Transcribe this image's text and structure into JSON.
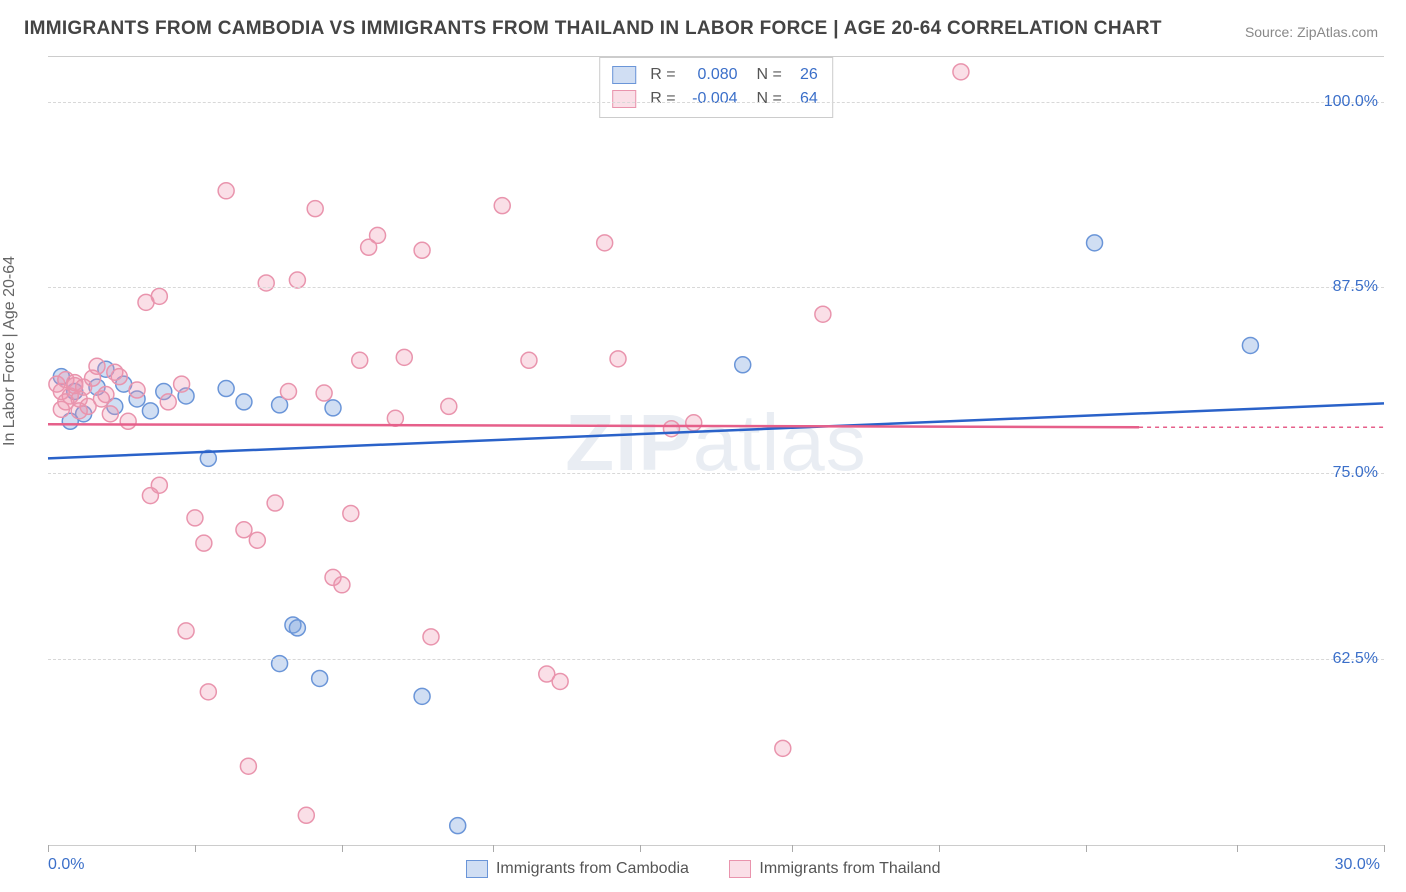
{
  "title": "IMMIGRANTS FROM CAMBODIA VS IMMIGRANTS FROM THAILAND IN LABOR FORCE | AGE 20-64 CORRELATION CHART",
  "source": "Source: ZipAtlas.com",
  "ylabel": "In Labor Force | Age 20-64",
  "watermark_a": "ZIP",
  "watermark_b": "atlas",
  "chart": {
    "type": "scatter-correlation",
    "background_color": "#ffffff",
    "grid_color": "#d8d8d8",
    "axis_color": "#cccccc",
    "marker_radius": 8,
    "marker_stroke_width": 1.5,
    "trend_line_width": 2.5,
    "trend_dash_width": 1.5,
    "xlim": [
      0,
      30
    ],
    "ylim": [
      50,
      103
    ],
    "xtick_positions": [
      0,
      3.3,
      6.6,
      10,
      13.3,
      16.7,
      20,
      23.3,
      26.7,
      30
    ],
    "xtick_labels": {
      "0": "0.0%",
      "30": "30.0%"
    },
    "ytick_positions": [
      62.5,
      75.0,
      87.5,
      100.0
    ],
    "ytick_labels": [
      "62.5%",
      "75.0%",
      "87.5%",
      "100.0%"
    ]
  },
  "series": [
    {
      "name": "Immigrants from Cambodia",
      "color_fill": "rgba(120,160,220,0.35)",
      "color_stroke": "#6a95d8",
      "line_color": "#2a62c9",
      "R": "0.080",
      "N": "26",
      "trend": {
        "x0": 0,
        "y0": 76.0,
        "x1": 30,
        "y1": 79.7,
        "dash_from_x": 30
      },
      "points": [
        [
          0.3,
          81.5
        ],
        [
          0.6,
          80.5
        ],
        [
          0.8,
          79.0
        ],
        [
          1.1,
          80.8
        ],
        [
          1.3,
          82.0
        ],
        [
          1.5,
          79.5
        ],
        [
          1.7,
          81.0
        ],
        [
          2.0,
          80.0
        ],
        [
          2.3,
          79.2
        ],
        [
          2.6,
          80.5
        ],
        [
          3.1,
          80.2
        ],
        [
          3.6,
          76.0
        ],
        [
          4.0,
          80.7
        ],
        [
          4.4,
          79.8
        ],
        [
          5.2,
          79.6
        ],
        [
          5.5,
          64.8
        ],
        [
          5.6,
          64.6
        ],
        [
          5.2,
          62.2
        ],
        [
          6.1,
          61.2
        ],
        [
          6.4,
          79.4
        ],
        [
          8.4,
          60.0
        ],
        [
          9.2,
          51.3
        ],
        [
          15.6,
          82.3
        ],
        [
          23.5,
          90.5
        ],
        [
          27.0,
          83.6
        ],
        [
          0.5,
          78.5
        ]
      ]
    },
    {
      "name": "Immigrants from Thailand",
      "color_fill": "rgba(240,150,175,0.30)",
      "color_stroke": "#e994ad",
      "line_color": "#e65f8a",
      "R": "-0.004",
      "N": "64",
      "trend": {
        "x0": 0,
        "y0": 78.3,
        "x1": 24.5,
        "y1": 78.1,
        "dash_from_x": 24.5,
        "dash_to_x": 30
      },
      "points": [
        [
          0.2,
          81.0
        ],
        [
          0.3,
          80.5
        ],
        [
          0.4,
          81.3
        ],
        [
          0.5,
          80.2
        ],
        [
          0.6,
          81.1
        ],
        [
          0.7,
          80.0
        ],
        [
          0.8,
          80.8
        ],
        [
          0.9,
          79.5
        ],
        [
          1.0,
          81.4
        ],
        [
          1.1,
          82.2
        ],
        [
          1.3,
          80.3
        ],
        [
          1.4,
          79.0
        ],
        [
          1.6,
          81.5
        ],
        [
          1.8,
          78.5
        ],
        [
          2.0,
          80.6
        ],
        [
          2.2,
          86.5
        ],
        [
          2.3,
          73.5
        ],
        [
          2.5,
          86.9
        ],
        [
          2.5,
          74.2
        ],
        [
          2.7,
          79.8
        ],
        [
          3.0,
          81.0
        ],
        [
          3.1,
          64.4
        ],
        [
          3.3,
          72.0
        ],
        [
          3.5,
          70.3
        ],
        [
          3.6,
          60.3
        ],
        [
          4.0,
          94.0
        ],
        [
          4.4,
          71.2
        ],
        [
          4.5,
          55.3
        ],
        [
          4.7,
          70.5
        ],
        [
          4.9,
          87.8
        ],
        [
          5.1,
          73.0
        ],
        [
          5.4,
          80.5
        ],
        [
          5.6,
          88.0
        ],
        [
          5.8,
          52.0
        ],
        [
          6.0,
          92.8
        ],
        [
          6.2,
          80.4
        ],
        [
          6.4,
          68.0
        ],
        [
          6.6,
          67.5
        ],
        [
          6.8,
          72.3
        ],
        [
          7.0,
          82.6
        ],
        [
          7.2,
          90.2
        ],
        [
          7.4,
          91.0
        ],
        [
          7.8,
          78.7
        ],
        [
          8.0,
          82.8
        ],
        [
          8.4,
          90.0
        ],
        [
          8.6,
          64.0
        ],
        [
          9.0,
          79.5
        ],
        [
          10.2,
          93.0
        ],
        [
          10.8,
          82.6
        ],
        [
          11.2,
          61.5
        ],
        [
          11.5,
          61.0
        ],
        [
          12.5,
          90.5
        ],
        [
          12.8,
          82.7
        ],
        [
          14.0,
          78.0
        ],
        [
          14.5,
          78.4
        ],
        [
          16.5,
          56.5
        ],
        [
          17.4,
          85.7
        ],
        [
          20.5,
          102.0
        ],
        [
          0.3,
          79.3
        ],
        [
          0.4,
          79.8
        ],
        [
          0.6,
          80.9
        ],
        [
          0.7,
          79.2
        ],
        [
          1.2,
          80.0
        ],
        [
          1.5,
          81.8
        ]
      ]
    }
  ],
  "legend_bottom": [
    {
      "swatch_fill": "rgba(120,160,220,0.35)",
      "swatch_stroke": "#6a95d8",
      "label": "Immigrants from Cambodia"
    },
    {
      "swatch_fill": "rgba(240,150,175,0.30)",
      "swatch_stroke": "#e994ad",
      "label": "Immigrants from Thailand"
    }
  ]
}
